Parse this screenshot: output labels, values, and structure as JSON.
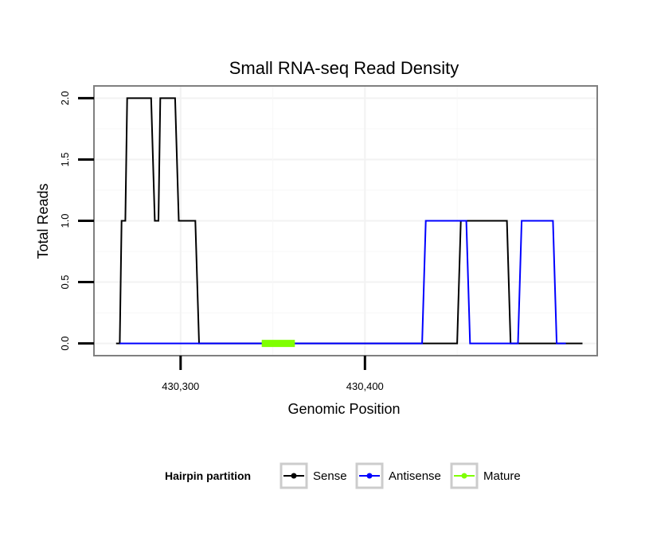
{
  "chart_data": {
    "type": "line",
    "title": "Small RNA-seq Read Density",
    "xlabel": "Genomic Position",
    "ylabel": "Total Reads",
    "xlim": [
      430253,
      430526
    ],
    "ylim": [
      -0.1,
      2.1
    ],
    "x_ticks": [
      430300,
      430400
    ],
    "x_tick_labels": [
      "430,300",
      "430,400"
    ],
    "y_ticks": [
      0,
      0.5,
      1,
      1.5,
      2
    ],
    "y_tick_labels": [
      "0.0",
      "0.5",
      "1.0",
      "1.5",
      "2.0"
    ],
    "grid": true,
    "legend": {
      "title": "Hairpin partition",
      "position": "bottom",
      "entries": [
        {
          "name": "Sense",
          "color": "#000000"
        },
        {
          "name": "Antisense",
          "color": "#0000ff"
        },
        {
          "name": "Mature",
          "color": "#7fff00"
        }
      ]
    },
    "series": [
      {
        "name": "Sense",
        "color": "#000000",
        "x": [
          430265,
          430267,
          430268,
          430270,
          430271,
          430284,
          430286,
          430288,
          430289,
          430297,
          430299,
          430308,
          430310,
          430450,
          430452,
          430477,
          430479,
          430518
        ],
        "y": [
          0,
          0,
          1,
          1,
          2,
          2,
          1,
          1,
          2,
          2,
          1,
          1,
          0,
          0,
          1,
          1,
          0,
          0
        ]
      },
      {
        "name": "Antisense",
        "color": "#0000ff",
        "x": [
          430267,
          430431,
          430433,
          430450,
          430452,
          430455,
          430457,
          430471,
          430476,
          430483,
          430485,
          430502,
          430504,
          430509
        ],
        "y": [
          0,
          0,
          1,
          1,
          1,
          1,
          0,
          0,
          0,
          0,
          1,
          1,
          0,
          0
        ]
      },
      {
        "name": "Mature",
        "color": "#7fff00",
        "x": [
          430344,
          430362
        ],
        "y": [
          0,
          0
        ]
      }
    ]
  }
}
